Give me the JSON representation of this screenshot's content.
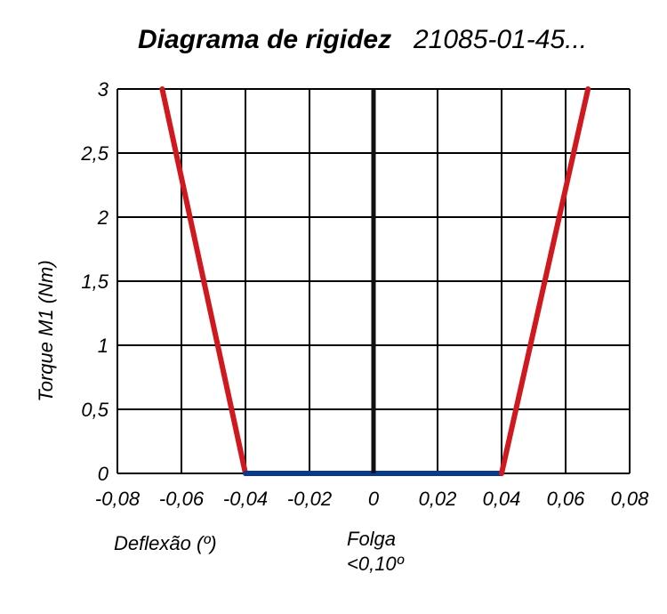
{
  "title": "Diagrama de rigidez",
  "code": "21085-01-45...",
  "xlabel": "Deflexão (º)",
  "ylabel": "Torque M1 (Nm)",
  "annotation": {
    "line1": "Folga",
    "line2": "<0,10º"
  },
  "colors": {
    "stiffness": "#d0181f",
    "backlash": "#0a3a8c",
    "zero_axis": "#111111",
    "grid": "#000000"
  },
  "chart_data": {
    "type": "line",
    "xlim": [
      -0.08,
      0.08
    ],
    "ylim": [
      0,
      3
    ],
    "grid": true,
    "x_ticks": [
      -0.08,
      -0.06,
      -0.04,
      -0.02,
      0,
      0.02,
      0.04,
      0.06,
      0.08
    ],
    "x_tick_labels": [
      "-0,08",
      "-0,06",
      "-0,04",
      "-0,02",
      "0",
      "0,02",
      "0,04",
      "0,06",
      "0,08"
    ],
    "y_ticks": [
      0,
      0.5,
      1,
      1.5,
      2,
      2.5,
      3
    ],
    "y_tick_labels": [
      "0",
      "0,5",
      "1",
      "1,5",
      "2",
      "2,5",
      "3"
    ],
    "series": [
      {
        "color": "#d0181f",
        "points": [
          [
            -0.066,
            3
          ],
          [
            -0.04,
            0
          ]
        ]
      },
      {
        "color": "#0a3a8c",
        "points": [
          [
            -0.04,
            0
          ],
          [
            0.04,
            0
          ]
        ]
      },
      {
        "color": "#d0181f",
        "points": [
          [
            0.04,
            0
          ],
          [
            0.067,
            3
          ]
        ]
      }
    ]
  }
}
